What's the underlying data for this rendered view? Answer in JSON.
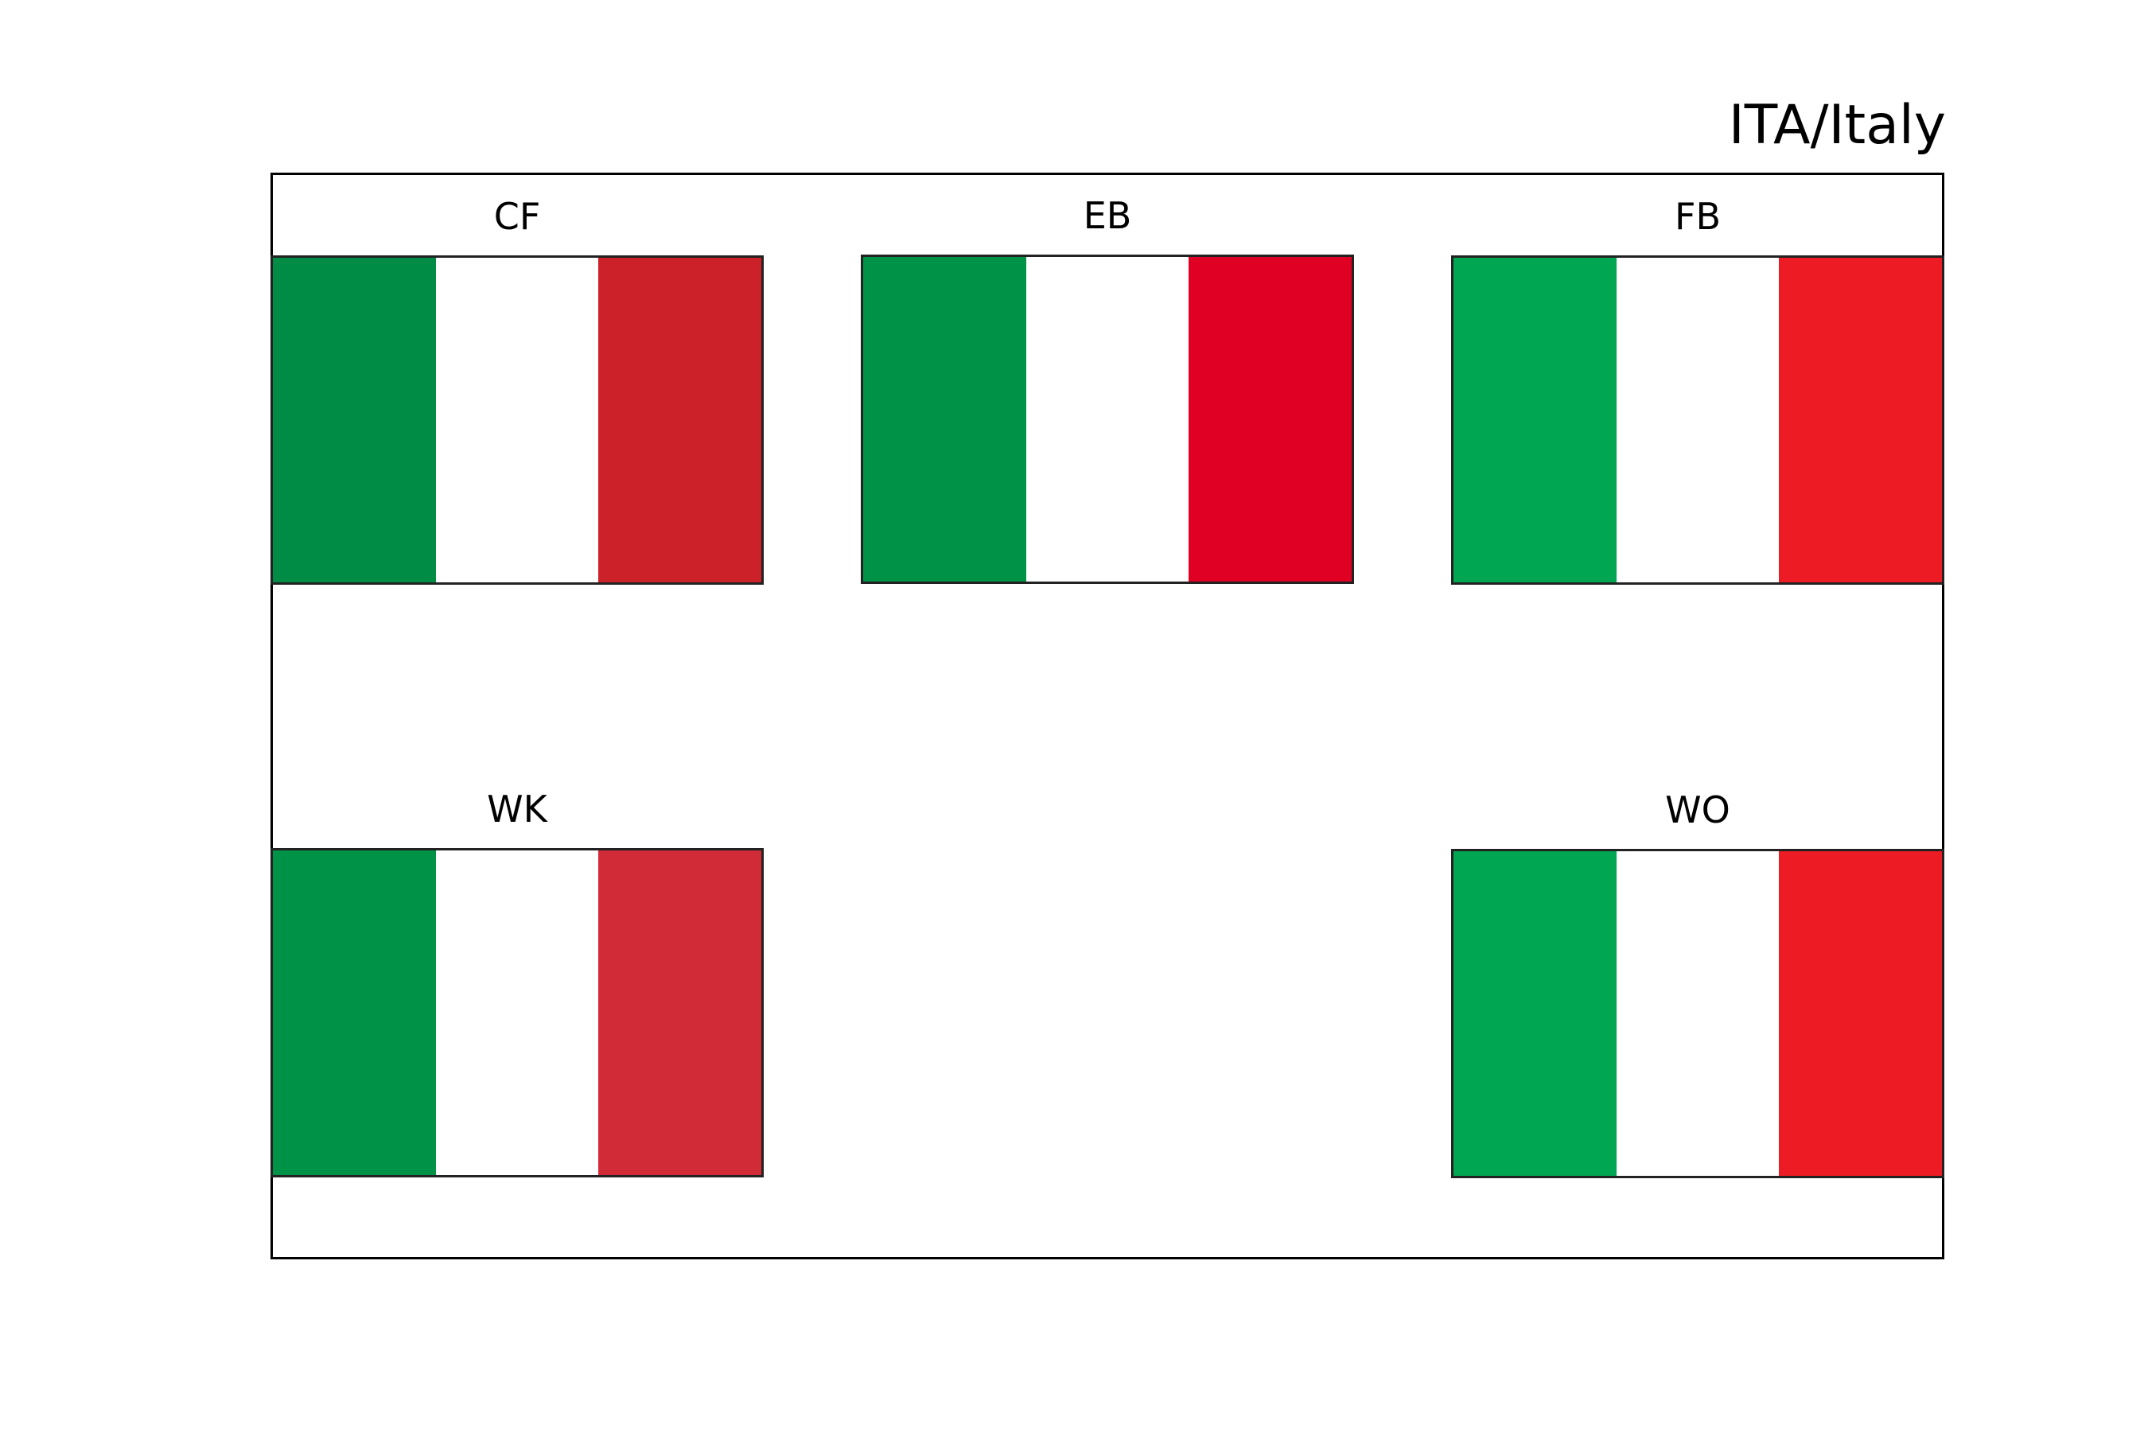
{
  "title": "ITA/Italy",
  "flags": [
    {
      "label": "CF",
      "colors": [
        "#008c45",
        "#ffffff",
        "#cd212a"
      ]
    },
    {
      "label": "EB",
      "colors": [
        "#009246",
        "#ffffff",
        "#e00024"
      ]
    },
    {
      "label": "FB",
      "colors": [
        "#00a651",
        "#ffffff",
        "#ed1c24"
      ]
    },
    {
      "label": "WK",
      "colors": [
        "#009246",
        "#ffffff",
        "#d22b38"
      ]
    },
    {
      "label": "WO",
      "colors": [
        "#00a651",
        "#ffffff",
        "#ed1c24"
      ]
    }
  ]
}
